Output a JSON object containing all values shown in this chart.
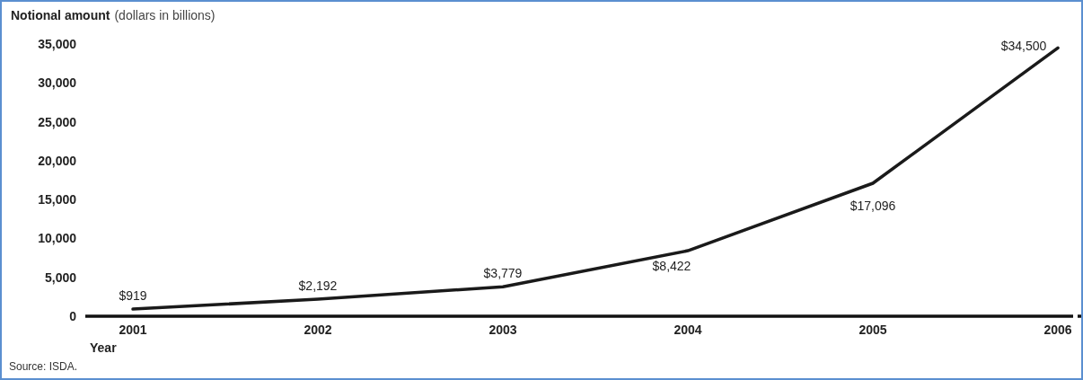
{
  "chart_data": {
    "type": "line",
    "title": "Notional amount",
    "subtitle": "(dollars in billions)",
    "xlabel": "Year",
    "annotations": [
      "Source: ISDA."
    ],
    "categories": [
      "2001",
      "2002",
      "2003",
      "2004",
      "2005",
      "2006"
    ],
    "series": [
      {
        "color": "#1a1a1a",
        "values": [
          919,
          2192,
          3779,
          8422,
          17096,
          34500
        ],
        "value_labels": [
          "$919",
          "$2,192",
          "$3,779",
          "$8,422",
          "$17,096",
          "$34,500"
        ]
      }
    ],
    "ylim": [
      0,
      35000
    ],
    "yticks": [
      0,
      {
        "value": 5000,
        "label": "5,000"
      },
      {
        "value": 10000,
        "label": "10,000"
      },
      {
        "value": 15000,
        "label": "15,000"
      },
      {
        "value": 20000,
        "label": "20,000"
      },
      {
        "value": 25000,
        "label": "25,000"
      },
      {
        "value": 30000,
        "label": "30,000"
      },
      {
        "value": 35000,
        "label": "35,000"
      }
    ],
    "grid": false,
    "marker": "none",
    "line_style": "solid"
  }
}
